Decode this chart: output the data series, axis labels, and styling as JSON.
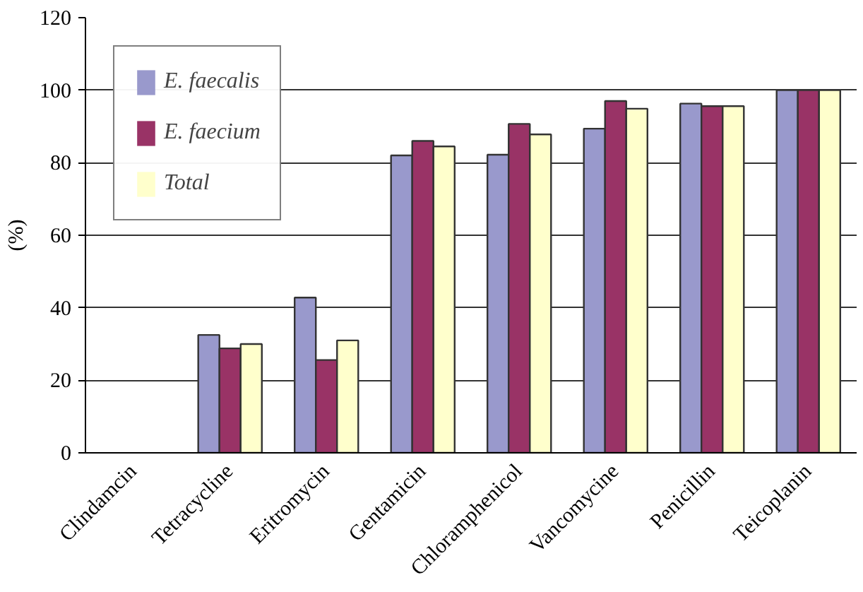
{
  "chart_data": {
    "type": "bar",
    "ylabel": "(%)",
    "categories": [
      "Clindamcin",
      "Tetracycline",
      "Eritromycin",
      "Gentamicin",
      "Chloramphenicol",
      "Vancomycine",
      "Penicillin",
      "Teicoplanin"
    ],
    "series": [
      {
        "name": "E. faecalis",
        "color": "#9999cc",
        "values": [
          0,
          32.5,
          42.8,
          82,
          82.2,
          89.4,
          96.3,
          100
        ]
      },
      {
        "name": "E. faecium",
        "color": "#993366",
        "values": [
          0,
          28.8,
          25.6,
          86,
          90.7,
          97,
          95.6,
          100
        ]
      },
      {
        "name": "Total",
        "color": "#ffffcc",
        "values": [
          0,
          30,
          31,
          84.5,
          87.8,
          94.9,
          95.6,
          100
        ]
      }
    ],
    "ylim": [
      0,
      120
    ],
    "yticks": [
      0,
      20,
      40,
      60,
      80,
      100,
      120
    ],
    "grid": "y",
    "legend": "top left"
  }
}
